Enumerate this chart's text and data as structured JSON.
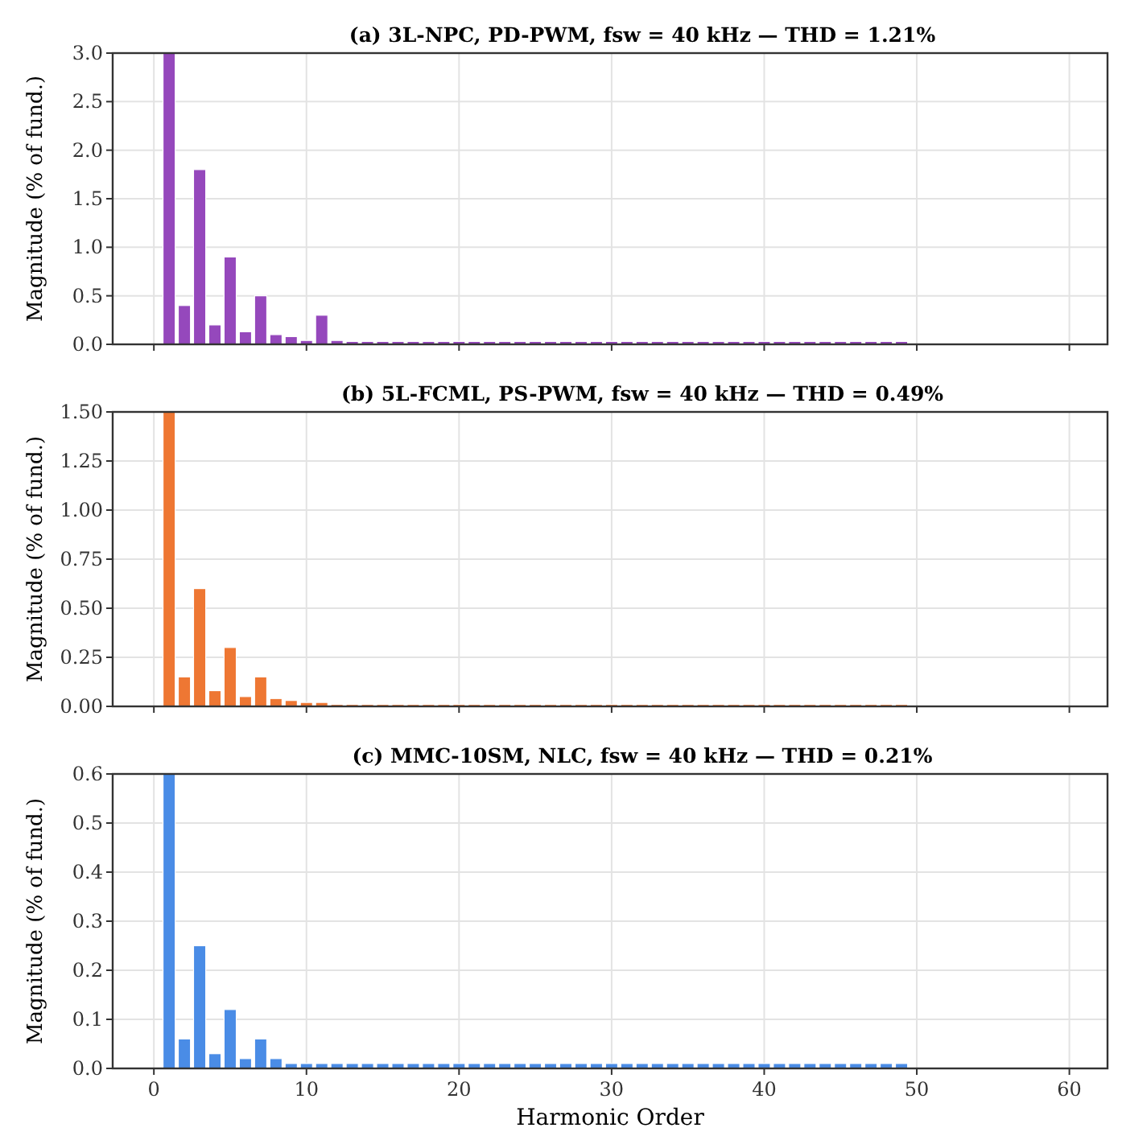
{
  "chart_data": [
    {
      "type": "bar",
      "title": "(a) 3L-NPC, PD-PWM, fsw = 40 kHz — THD = 1.21%",
      "ylabel": "Magnitude (% of fund.)",
      "x": [
        1,
        2,
        3,
        4,
        5,
        6,
        7,
        8,
        9,
        10,
        11,
        12,
        13,
        14,
        15,
        16,
        17,
        18,
        19,
        20,
        21,
        22,
        23,
        24,
        25,
        26,
        27,
        28,
        29,
        30,
        31,
        32,
        33,
        34,
        35,
        36,
        37,
        38,
        39,
        40,
        41,
        42,
        43,
        44,
        45,
        46,
        47,
        48,
        49
      ],
      "values": [
        3.0,
        0.4,
        1.8,
        0.2,
        0.9,
        0.13,
        0.5,
        0.1,
        0.08,
        0.04,
        0.3,
        0.04,
        0.03,
        0.03,
        0.03,
        0.03,
        0.03,
        0.03,
        0.03,
        0.03,
        0.03,
        0.03,
        0.03,
        0.03,
        0.03,
        0.03,
        0.03,
        0.03,
        0.03,
        0.03,
        0.03,
        0.03,
        0.03,
        0.03,
        0.03,
        0.03,
        0.03,
        0.03,
        0.03,
        0.03,
        0.03,
        0.03,
        0.03,
        0.03,
        0.03,
        0.03,
        0.03,
        0.03,
        0.03
      ],
      "color": "#9548bc",
      "xlim": [
        -2.7,
        62.5
      ],
      "xticks": [
        0,
        10,
        20,
        30,
        40,
        50,
        60
      ],
      "ylim": [
        0,
        3
      ],
      "yticks": [
        {
          "value": 0,
          "label": "0.0"
        },
        {
          "value": 0.5,
          "label": "0.5"
        },
        {
          "value": 1,
          "label": "1.0"
        },
        {
          "value": 1.5,
          "label": "1.5"
        },
        {
          "value": 2,
          "label": "2.0"
        },
        {
          "value": 2.5,
          "label": "2.5"
        },
        {
          "value": 3,
          "label": "3.0"
        }
      ],
      "grid": true,
      "tick_labels": "y"
    },
    {
      "type": "bar",
      "title": "(b) 5L-FCML, PS-PWM, fsw = 40 kHz — THD = 0.49%",
      "ylabel": "Magnitude (% of fund.)",
      "x": [
        1,
        2,
        3,
        4,
        5,
        6,
        7,
        8,
        9,
        10,
        11,
        12,
        13,
        14,
        15,
        16,
        17,
        18,
        19,
        20,
        21,
        22,
        23,
        24,
        25,
        26,
        27,
        28,
        29,
        30,
        31,
        32,
        33,
        34,
        35,
        36,
        37,
        38,
        39,
        40,
        41,
        42,
        43,
        44,
        45,
        46,
        47,
        48,
        49
      ],
      "values": [
        1.5,
        0.15,
        0.6,
        0.08,
        0.3,
        0.05,
        0.15,
        0.04,
        0.03,
        0.02,
        0.02,
        0.01,
        0.01,
        0.01,
        0.01,
        0.01,
        0.01,
        0.01,
        0.01,
        0.01,
        0.01,
        0.01,
        0.01,
        0.01,
        0.01,
        0.01,
        0.01,
        0.01,
        0.01,
        0.01,
        0.01,
        0.01,
        0.01,
        0.01,
        0.01,
        0.01,
        0.01,
        0.01,
        0.01,
        0.01,
        0.01,
        0.01,
        0.01,
        0.01,
        0.01,
        0.01,
        0.01,
        0.01,
        0.01
      ],
      "color": "#ee7733",
      "xlim": [
        -2.7,
        62.5
      ],
      "xticks": [
        0,
        10,
        20,
        30,
        40,
        50,
        60
      ],
      "ylim": [
        0,
        1.5
      ],
      "yticks": [
        {
          "value": 0,
          "label": "0.00"
        },
        {
          "value": 0.25,
          "label": "0.25"
        },
        {
          "value": 0.5,
          "label": "0.50"
        },
        {
          "value": 0.75,
          "label": "0.75"
        },
        {
          "value": 1,
          "label": "1.00"
        },
        {
          "value": 1.25,
          "label": "1.25"
        },
        {
          "value": 1.5,
          "label": "1.50"
        }
      ],
      "grid": true,
      "tick_labels": "y"
    },
    {
      "type": "bar",
      "title": "(c) MMC-10SM, NLC, fsw = 40 kHz — THD = 0.21%",
      "xlabel": "Harmonic Order",
      "ylabel": "Magnitude (% of fund.)",
      "x": [
        1,
        2,
        3,
        4,
        5,
        6,
        7,
        8,
        9,
        10,
        11,
        12,
        13,
        14,
        15,
        16,
        17,
        18,
        19,
        20,
        21,
        22,
        23,
        24,
        25,
        26,
        27,
        28,
        29,
        30,
        31,
        32,
        33,
        34,
        35,
        36,
        37,
        38,
        39,
        40,
        41,
        42,
        43,
        44,
        45,
        46,
        47,
        48,
        49
      ],
      "values": [
        0.6,
        0.06,
        0.25,
        0.03,
        0.12,
        0.02,
        0.06,
        0.02,
        0.01,
        0.01,
        0.01,
        0.01,
        0.01,
        0.01,
        0.01,
        0.01,
        0.01,
        0.01,
        0.01,
        0.01,
        0.01,
        0.01,
        0.01,
        0.01,
        0.01,
        0.01,
        0.01,
        0.01,
        0.01,
        0.01,
        0.01,
        0.01,
        0.01,
        0.01,
        0.01,
        0.01,
        0.01,
        0.01,
        0.01,
        0.01,
        0.01,
        0.01,
        0.01,
        0.01,
        0.01,
        0.01,
        0.01,
        0.01,
        0.01
      ],
      "color": "#4a8ce6",
      "xlim": [
        -2.7,
        62.5
      ],
      "xticks": [
        0,
        10,
        20,
        30,
        40,
        50,
        60
      ],
      "ylim": [
        0,
        0.6
      ],
      "yticks": [
        {
          "value": 0,
          "label": "0.0"
        },
        {
          "value": 0.1,
          "label": "0.1"
        },
        {
          "value": 0.2,
          "label": "0.2"
        },
        {
          "value": 0.3,
          "label": "0.3"
        },
        {
          "value": 0.4,
          "label": "0.4"
        },
        {
          "value": 0.5,
          "label": "0.5"
        },
        {
          "value": 0.6,
          "label": "0.6"
        }
      ],
      "grid": true
    }
  ]
}
